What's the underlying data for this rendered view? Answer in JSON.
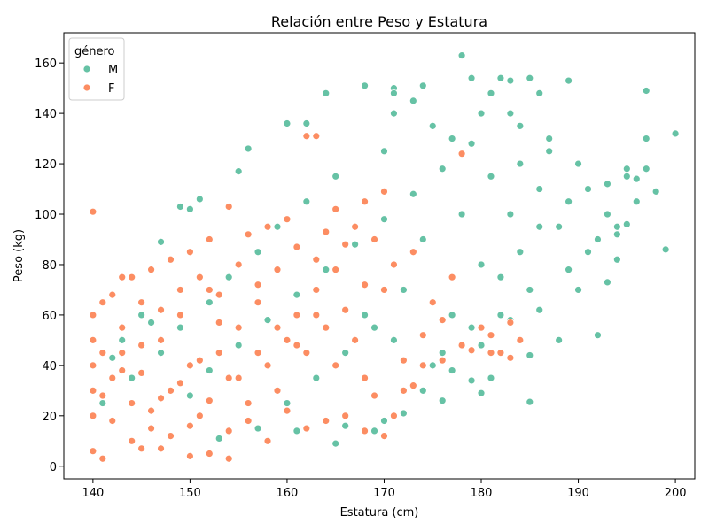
{
  "chart_data": {
    "type": "scatter",
    "title": "Relación entre Peso y Estatura",
    "xlabel": "Estatura (cm)",
    "ylabel": "Peso (kg)",
    "xlim": [
      137,
      202
    ],
    "ylim": [
      -5,
      172
    ],
    "xticks": [
      140,
      150,
      160,
      170,
      180,
      190,
      200
    ],
    "yticks": [
      0,
      20,
      40,
      60,
      80,
      100,
      120,
      140,
      160
    ],
    "grid": false,
    "legend": {
      "title": "género",
      "position": "top-left"
    },
    "series": [
      {
        "name": "M",
        "color": "#66c2a5",
        "points": [
          [
            178,
            163
          ],
          [
            179,
            154
          ],
          [
            182,
            154
          ],
          [
            185,
            154
          ],
          [
            183,
            153
          ],
          [
            189,
            153
          ],
          [
            168,
            151
          ],
          [
            174,
            151
          ],
          [
            171,
            150
          ],
          [
            197,
            149
          ],
          [
            181,
            148
          ],
          [
            186,
            148
          ],
          [
            164,
            148
          ],
          [
            171,
            148
          ],
          [
            200,
            132
          ],
          [
            198,
            109
          ],
          [
            199,
            86
          ],
          [
            197,
            118
          ],
          [
            196,
            114
          ],
          [
            195,
            96
          ],
          [
            194,
            92
          ],
          [
            194,
            82
          ],
          [
            193,
            73
          ],
          [
            192,
            52
          ],
          [
            185,
            44
          ],
          [
            185,
            25.5
          ],
          [
            181,
            35
          ],
          [
            180,
            29
          ],
          [
            179,
            34
          ],
          [
            176,
            26
          ],
          [
            172,
            21
          ],
          [
            170,
            18
          ],
          [
            165,
            9
          ],
          [
            160,
            136
          ],
          [
            162,
            136
          ],
          [
            156,
            126
          ],
          [
            155,
            117
          ],
          [
            150,
            102
          ],
          [
            151,
            106
          ],
          [
            149,
            103
          ],
          [
            147,
            89
          ],
          [
            145,
            60
          ],
          [
            143,
            50
          ],
          [
            142,
            43
          ],
          [
            146,
            57
          ],
          [
            148,
            12
          ],
          [
            153,
            11
          ],
          [
            157,
            15
          ],
          [
            161,
            14
          ],
          [
            166,
            16
          ],
          [
            169,
            14
          ],
          [
            175,
            40
          ],
          [
            182,
            60
          ],
          [
            190,
            70
          ],
          [
            188,
            95
          ],
          [
            186,
            110
          ],
          [
            184,
            120
          ],
          [
            187,
            130
          ],
          [
            183,
            140
          ],
          [
            179,
            128
          ],
          [
            176,
            118
          ],
          [
            173,
            108
          ],
          [
            170,
            98
          ],
          [
            167,
            88
          ],
          [
            164,
            78
          ],
          [
            161,
            68
          ],
          [
            158,
            58
          ],
          [
            155,
            48
          ],
          [
            152,
            38
          ],
          [
            150,
            28
          ],
          [
            177,
            60
          ],
          [
            180,
            80
          ],
          [
            183,
            100
          ],
          [
            185,
            70
          ],
          [
            188,
            50
          ],
          [
            191,
            110
          ],
          [
            193,
            100
          ],
          [
            195,
            115
          ],
          [
            174,
            90
          ],
          [
            172,
            70
          ],
          [
            169,
            55
          ],
          [
            166,
            45
          ],
          [
            163,
            35
          ],
          [
            160,
            25
          ],
          [
            176,
            45
          ],
          [
            179,
            55
          ],
          [
            182,
            75
          ],
          [
            184,
            85
          ],
          [
            186,
            95
          ],
          [
            189,
            105
          ],
          [
            178,
            100
          ],
          [
            181,
            115
          ],
          [
            175,
            135
          ],
          [
            170,
            125
          ],
          [
            165,
            115
          ],
          [
            162,
            105
          ],
          [
            159,
            95
          ],
          [
            157,
            85
          ],
          [
            154,
            75
          ],
          [
            152,
            65
          ],
          [
            149,
            55
          ],
          [
            147,
            45
          ],
          [
            144,
            35
          ],
          [
            141,
            25
          ],
          [
            171,
            140
          ],
          [
            173,
            145
          ],
          [
            177,
            130
          ],
          [
            180,
            140
          ],
          [
            184,
            135
          ],
          [
            187,
            125
          ],
          [
            190,
            120
          ],
          [
            192,
            90
          ],
          [
            194,
            95
          ],
          [
            196,
            105
          ],
          [
            168,
            60
          ],
          [
            171,
            50
          ],
          [
            174,
            30
          ],
          [
            177,
            38
          ],
          [
            180,
            48
          ],
          [
            183,
            58
          ],
          [
            186,
            62
          ],
          [
            189,
            78
          ],
          [
            191,
            85
          ],
          [
            193,
            112
          ],
          [
            195,
            118
          ],
          [
            197,
            130
          ]
        ]
      },
      {
        "name": "F",
        "color": "#fc8d62",
        "points": [
          [
            140,
            101
          ],
          [
            141,
            3
          ],
          [
            154,
            3
          ],
          [
            150,
            4
          ],
          [
            152,
            5
          ],
          [
            140,
            6
          ],
          [
            145,
            7
          ],
          [
            147,
            7
          ],
          [
            163,
            131
          ],
          [
            162,
            131
          ],
          [
            178,
            124
          ],
          [
            170,
            109
          ],
          [
            168,
            105
          ],
          [
            165,
            102
          ],
          [
            154,
            103
          ],
          [
            160,
            98
          ],
          [
            158,
            95
          ],
          [
            156,
            92
          ],
          [
            152,
            90
          ],
          [
            150,
            85
          ],
          [
            148,
            82
          ],
          [
            146,
            78
          ],
          [
            144,
            75
          ],
          [
            143,
            75
          ],
          [
            142,
            68
          ],
          [
            141,
            65
          ],
          [
            140,
            60
          ],
          [
            140,
            50
          ],
          [
            140,
            40
          ],
          [
            140,
            30
          ],
          [
            140,
            20
          ],
          [
            141,
            45
          ],
          [
            142,
            35
          ],
          [
            143,
            55
          ],
          [
            144,
            25
          ],
          [
            145,
            65
          ],
          [
            146,
            15
          ],
          [
            147,
            50
          ],
          [
            148,
            30
          ],
          [
            149,
            60
          ],
          [
            150,
            40
          ],
          [
            151,
            20
          ],
          [
            152,
            70
          ],
          [
            153,
            45
          ],
          [
            154,
            35
          ],
          [
            155,
            55
          ],
          [
            156,
            25
          ],
          [
            157,
            65
          ],
          [
            158,
            40
          ],
          [
            159,
            30
          ],
          [
            160,
            50
          ],
          [
            161,
            60
          ],
          [
            162,
            45
          ],
          [
            163,
            70
          ],
          [
            164,
            55
          ],
          [
            165,
            40
          ],
          [
            166,
            62
          ],
          [
            167,
            50
          ],
          [
            168,
            35
          ],
          [
            169,
            28
          ],
          [
            170,
            12
          ],
          [
            171,
            20
          ],
          [
            172,
            30
          ],
          [
            173,
            32
          ],
          [
            174,
            40
          ],
          [
            176,
            42
          ],
          [
            178,
            48
          ],
          [
            180,
            55
          ],
          [
            181,
            45
          ],
          [
            182,
            45
          ],
          [
            183,
            43
          ],
          [
            184,
            50
          ],
          [
            175,
            65
          ],
          [
            177,
            75
          ],
          [
            173,
            85
          ],
          [
            171,
            80
          ],
          [
            169,
            90
          ],
          [
            167,
            95
          ],
          [
            166,
            88
          ],
          [
            164,
            93
          ],
          [
            163,
            82
          ],
          [
            161,
            87
          ],
          [
            159,
            78
          ],
          [
            157,
            72
          ],
          [
            155,
            80
          ],
          [
            153,
            68
          ],
          [
            151,
            75
          ],
          [
            149,
            70
          ],
          [
            147,
            62
          ],
          [
            145,
            48
          ],
          [
            143,
            38
          ],
          [
            141,
            28
          ],
          [
            142,
            18
          ],
          [
            144,
            10
          ],
          [
            146,
            22
          ],
          [
            148,
            12
          ],
          [
            150,
            16
          ],
          [
            152,
            26
          ],
          [
            154,
            14
          ],
          [
            156,
            18
          ],
          [
            158,
            10
          ],
          [
            160,
            22
          ],
          [
            162,
            15
          ],
          [
            164,
            18
          ],
          [
            166,
            20
          ],
          [
            168,
            14
          ],
          [
            172,
            42
          ],
          [
            174,
            52
          ],
          [
            176,
            58
          ],
          [
            179,
            46
          ],
          [
            181,
            52
          ],
          [
            183,
            57
          ],
          [
            170,
            70
          ],
          [
            168,
            72
          ],
          [
            165,
            78
          ],
          [
            163,
            60
          ],
          [
            161,
            48
          ],
          [
            159,
            55
          ],
          [
            157,
            45
          ],
          [
            155,
            35
          ],
          [
            153,
            57
          ],
          [
            151,
            42
          ],
          [
            149,
            33
          ],
          [
            147,
            27
          ],
          [
            145,
            37
          ],
          [
            143,
            45
          ]
        ]
      }
    ]
  }
}
